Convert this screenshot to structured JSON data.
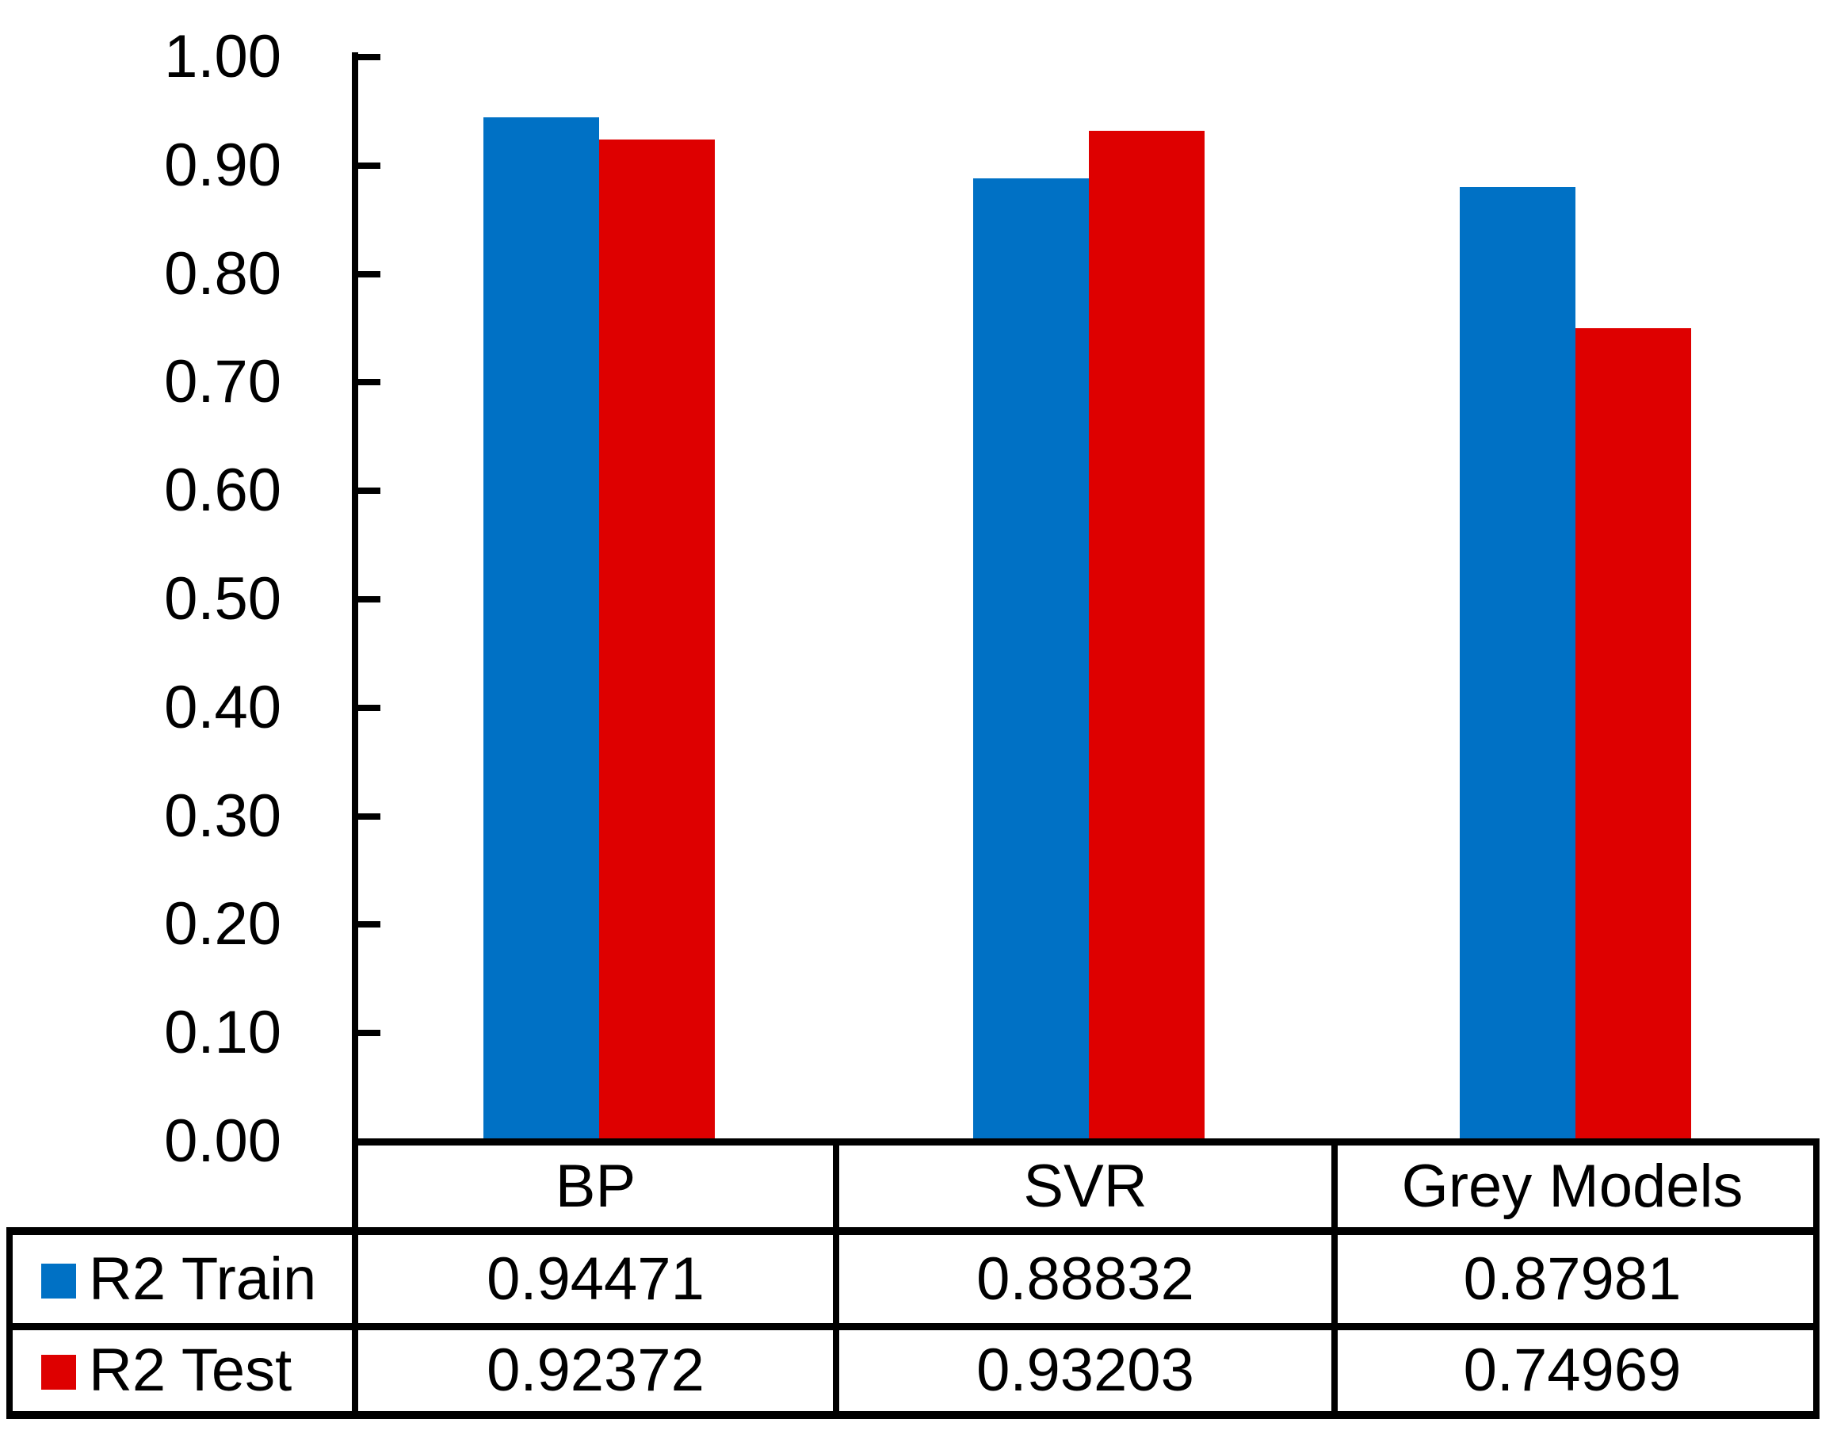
{
  "chart_data": {
    "type": "bar",
    "title": "",
    "xlabel": "",
    "ylabel": "",
    "categories": [
      "BP",
      "SVR",
      "Grey Models"
    ],
    "series": [
      {
        "name": "R2 Train",
        "color": "#0071C5",
        "values": [
          0.94471,
          0.88832,
          0.87981
        ]
      },
      {
        "name": "R2 Test",
        "color": "#DE0000",
        "values": [
          0.92372,
          0.93203,
          0.74969
        ]
      }
    ],
    "ylim": [
      0.0,
      1.0
    ],
    "ytick_step": 0.1,
    "ytick_labels": [
      "1.00",
      "0.90",
      "0.80",
      "0.70",
      "0.60",
      "0.50",
      "0.40",
      "0.30",
      "0.20",
      "0.10",
      "0.00"
    ],
    "grid": false,
    "legend_position": "data-table-left",
    "axis_color": "#000000"
  },
  "table": {
    "columns": [
      "BP",
      "SVR",
      "Grey Models"
    ],
    "rows": [
      {
        "label": "R2 Train",
        "swatch_color": "#0071C5",
        "values": [
          "0.94471",
          "0.88832",
          "0.87981"
        ]
      },
      {
        "label": "R2 Test",
        "swatch_color": "#DE0000",
        "values": [
          "0.92372",
          "0.93203",
          "0.74969"
        ]
      }
    ]
  }
}
